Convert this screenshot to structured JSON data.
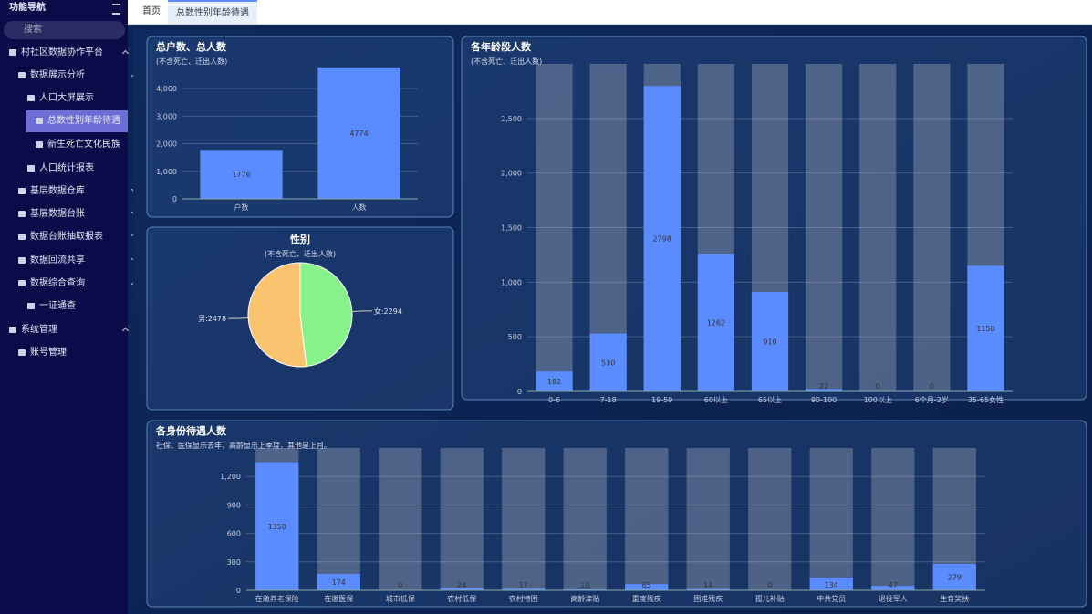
{
  "sidebar": {
    "title": "功能导航",
    "search": "搜索",
    "items": [
      "村社区数据协作平台",
      "数据展示分析",
      "人口大屏展示",
      "总数性别年龄待遇",
      "新生死亡文化民族",
      "人口统计报表",
      "基层数据仓库",
      "基层数据台账",
      "数据台账抽取报表",
      "数据回流共享",
      "数据综合查询",
      "一证通查",
      "系统管理",
      "账号管理"
    ]
  },
  "tabs": [
    "首页",
    "总数性别年龄待遇"
  ],
  "chart_data": [
    {
      "type": "bar",
      "title": "总户数、总人数",
      "subtitle": "(不含死亡、迁出人数)",
      "categories": [
        "户数",
        "人数"
      ],
      "values": [
        1776,
        4774
      ],
      "color": "#5b8cff",
      "ylim": [
        0,
        4900
      ],
      "yticks": [
        0,
        {
          "value": 1000,
          "label": "1,000"
        },
        {
          "value": 2000,
          "label": "2,000"
        },
        {
          "value": 3000,
          "label": "3,000"
        },
        {
          "value": 4000,
          "label": "4,000"
        }
      ],
      "grid": true
    },
    {
      "type": "pie",
      "title": "性别",
      "subtitle": "(不含死亡、迁出人数)",
      "categories": [
        "女",
        "男"
      ],
      "values": [
        2294,
        2478
      ],
      "value_labels": [
        "女:2294",
        "男:2478"
      ],
      "colors": [
        "#87f28a",
        "#f9c36f"
      ]
    },
    {
      "type": "bar",
      "title": "各年龄段人数",
      "subtitle": "(不含死亡、迁出人数)",
      "categories": [
        "0-6",
        "7-18",
        "19-59",
        "60以上",
        "65以上",
        "90-100",
        "100以上",
        "6个月-2岁",
        "35-65女性"
      ],
      "values": [
        182,
        530,
        2798,
        1262,
        910,
        22,
        0,
        0,
        1150
      ],
      "color": "#5b8cff",
      "show_background": true,
      "ylim": [
        0,
        3000
      ],
      "yticks": [
        0,
        500,
        {
          "value": 1000,
          "label": "1,000"
        },
        {
          "value": 1500,
          "label": "1,500"
        },
        {
          "value": 2000,
          "label": "2,000"
        },
        {
          "value": 2500,
          "label": "2,500"
        }
      ],
      "grid": true
    },
    {
      "type": "bar",
      "title": "各身份待遇人数",
      "subtitle": "社保、医保显示去年，高龄显示上季度，其他是上月。",
      "categories": [
        "在缴养老保险",
        "在缴医保",
        "城市低保",
        "农村低保",
        "农村特困",
        "高龄津贴",
        "重度残疾",
        "困难残疾",
        "孤儿补贴",
        "中共党员",
        "退役军人",
        "生育奖扶"
      ],
      "values": [
        1350,
        174,
        0,
        24,
        17,
        10,
        65,
        14,
        0,
        134,
        47,
        279
      ],
      "color": "#5b8cff",
      "show_background": true,
      "ylim": [
        0,
        1500
      ],
      "yticks": [
        0,
        300,
        600,
        900,
        {
          "value": 1200,
          "label": "1,200"
        }
      ],
      "grid": true
    }
  ]
}
